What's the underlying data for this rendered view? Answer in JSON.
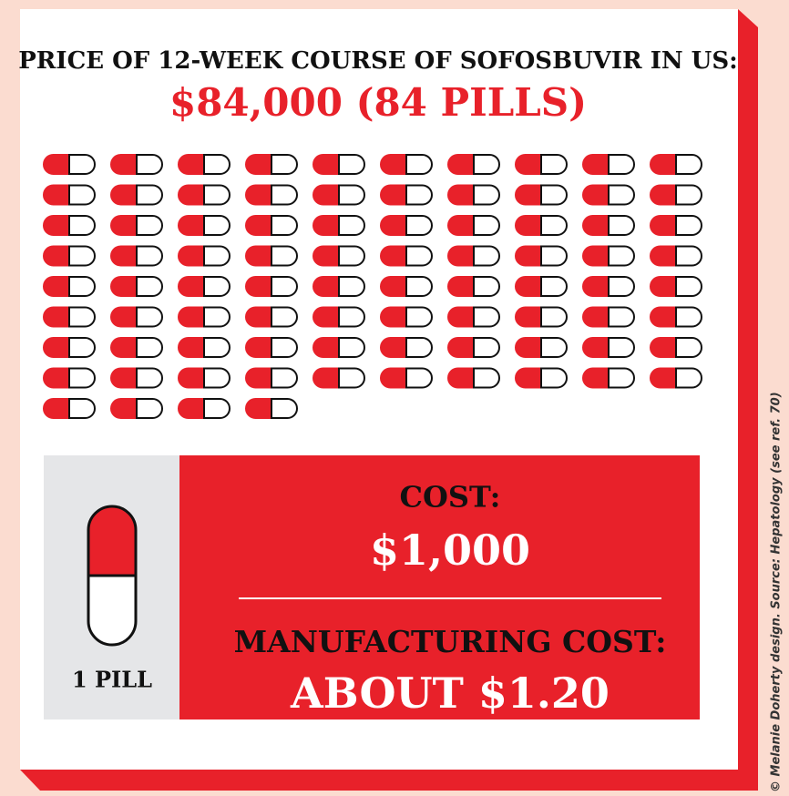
{
  "header": {
    "title": "PRICE OF 12-WEEK COURSE OF SOFOSBUVIR IN US:",
    "headline": "$84,000 (84 PILLS)"
  },
  "pictogram": {
    "count": 84
  },
  "panel": {
    "pill_label": "1 PILL",
    "cost_label": "COST:",
    "cost_value": "$1,000",
    "manufacturing_label": "MANUFACTURING COST:",
    "manufacturing_value": "ABOUT $1.20"
  },
  "credit": "© Melanie Doherty design.  Source: Hepatology (see ref. 70)"
}
